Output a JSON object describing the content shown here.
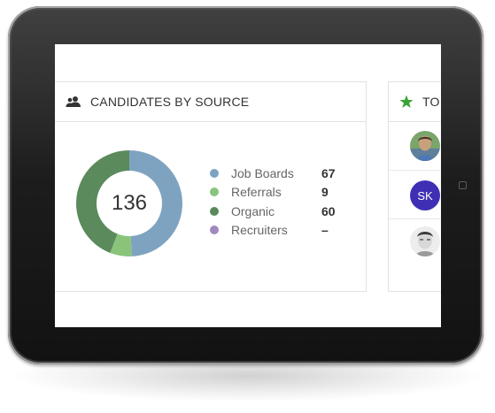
{
  "device": {
    "name": "tablet-frame"
  },
  "sources_card": {
    "title": "CANDIDATES BY SOURCE",
    "icon": "users-icon",
    "total": "136",
    "items": [
      {
        "label": "Job Boards",
        "value": "67",
        "color": "#7ea3c1"
      },
      {
        "label": "Referrals",
        "value": "9",
        "color": "#8ac47b"
      },
      {
        "label": "Organic",
        "value": "60",
        "color": "#5b8a5c"
      },
      {
        "label": "Recruiters",
        "value": "–",
        "color": "#a189bf"
      }
    ]
  },
  "top_card": {
    "title": "TO",
    "icon": "star-icon",
    "star_color": "#3aa335",
    "people": [
      {
        "type": "photo",
        "name_icon": "person-photo-1"
      },
      {
        "type": "initials",
        "initials": "SK",
        "color": "#3f2fb5"
      },
      {
        "type": "photo",
        "name_icon": "person-photo-2"
      }
    ]
  }
}
